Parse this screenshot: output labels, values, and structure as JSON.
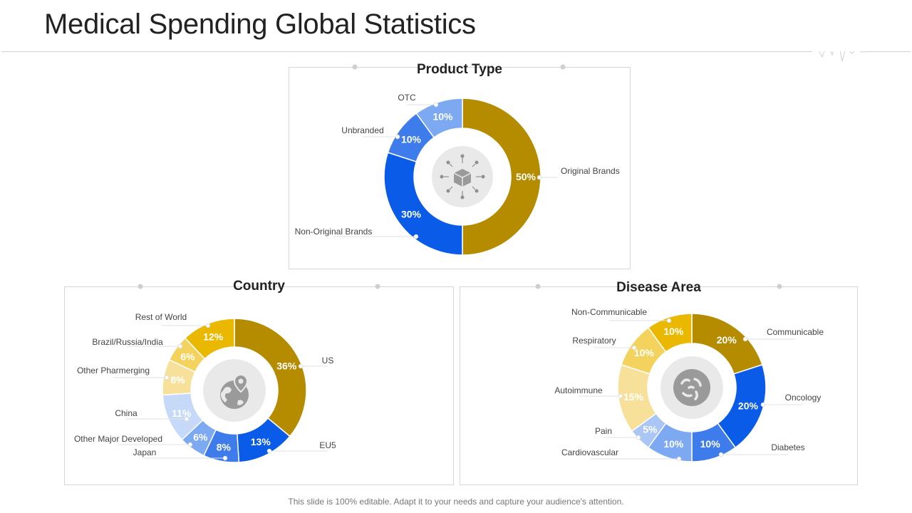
{
  "title": "Medical Spending Global Statistics",
  "footer": "This slide is 100% editable. Adapt it to your needs and capture your audience's attention.",
  "colors": {
    "gold": "#B58B00",
    "blue": "#0A5BE8",
    "blue_mid": "#3F7CEB",
    "blue_light": "#7DA9F2",
    "blue_pale": "#A9C6F5",
    "blue_paler": "#C6D9F8",
    "yellow": "#EBB800",
    "yellow_light": "#F3D35E",
    "yellow_pale": "#F7E19A",
    "center_grey": "#AFAFAF"
  },
  "chart_data": [
    {
      "type": "pie",
      "variant": "donut",
      "title": "Product Type",
      "center_icon": "box-network-icon",
      "slices": [
        {
          "label": "Original Brands",
          "value": 50,
          "display": "50%",
          "color": "#B58B00"
        },
        {
          "label": "Non-Original Brands",
          "value": 30,
          "display": "30%",
          "color": "#0A5BE8"
        },
        {
          "label": "Unbranded",
          "value": 10,
          "display": "10%",
          "color": "#3F7CEB"
        },
        {
          "label": "OTC",
          "value": 10,
          "display": "10%",
          "color": "#7DA9F2"
        }
      ]
    },
    {
      "type": "pie",
      "variant": "donut",
      "title": "Country",
      "center_icon": "globe-pin-icon",
      "slices": [
        {
          "label": "US",
          "value": 36,
          "display": "36%",
          "color": "#B58B00"
        },
        {
          "label": "EU5",
          "value": 13,
          "display": "13%",
          "color": "#0A5BE8"
        },
        {
          "label": "Japan",
          "value": 8,
          "display": "8%",
          "color": "#3F7CEB"
        },
        {
          "label": "Other Major Developed",
          "value": 6,
          "display": "6%",
          "color": "#7DA9F2"
        },
        {
          "label": "China",
          "value": 11,
          "display": "11%",
          "color": "#C6D9F8"
        },
        {
          "label": "Other Pharmerging",
          "value": 8,
          "display": "8%",
          "color": "#F7E19A"
        },
        {
          "label": "Brazil/Russia/India",
          "value": 6,
          "display": "6%",
          "color": "#F3D35E"
        },
        {
          "label": "Rest of World",
          "value": 12,
          "display": "12%",
          "color": "#EBB800"
        }
      ]
    },
    {
      "type": "pie",
      "variant": "donut",
      "title": "Disease Area",
      "center_icon": "bacteria-icon",
      "slices": [
        {
          "label": "Communicable",
          "value": 20,
          "display": "20%",
          "color": "#B58B00"
        },
        {
          "label": "Oncology",
          "value": 20,
          "display": "20%",
          "color": "#0A5BE8"
        },
        {
          "label": "Diabetes",
          "value": 10,
          "display": "10%",
          "color": "#3F7CEB"
        },
        {
          "label": "Cardiovascular",
          "value": 10,
          "display": "10%",
          "color": "#7DA9F2"
        },
        {
          "label": "Pain",
          "value": 5,
          "display": "5%",
          "color": "#A9C6F5"
        },
        {
          "label": "Autoimmune",
          "value": 15,
          "display": "15%",
          "color": "#F7E19A"
        },
        {
          "label": "Respiratory",
          "value": 10,
          "display": "10%",
          "color": "#F3D35E"
        },
        {
          "label": "Non-Communicable",
          "value": 10,
          "display": "10%",
          "color": "#EBB800"
        }
      ]
    }
  ]
}
